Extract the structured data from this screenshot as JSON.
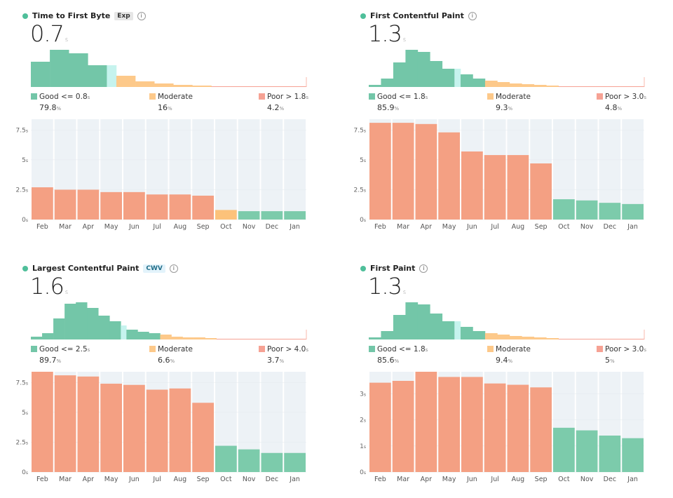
{
  "colors": {
    "good": "#73c6a8",
    "good_current": "#c6f3ee",
    "moderate": "#fdc98a",
    "poor": "#f6a294",
    "bar_good": "#7ccbab",
    "bar_moderate": "#fcc27a",
    "bar_poor": "#f4a083",
    "plot_bg": "#edf2f6",
    "dot": "#4fbf9a"
  },
  "panels": [
    {
      "title": "Time to First Byte",
      "badge": "Exp",
      "badge_type": "exp",
      "info_icon": "i",
      "value": "0.7",
      "unit": "s",
      "legend": {
        "good": {
          "label": "Good <= 0.8",
          "unit": "s",
          "value": "79.8",
          "pct": "%"
        },
        "moderate": {
          "label": "Moderate",
          "value": "16",
          "pct": "%"
        },
        "poor": {
          "label": "Poor > 1.8",
          "unit": "s",
          "value": "4.2",
          "pct": "%"
        }
      },
      "histogram": [
        {
          "h": 36,
          "c": "good"
        },
        {
          "h": 53,
          "c": "good"
        },
        {
          "h": 48,
          "c": "good"
        },
        {
          "h": 31,
          "c": "good"
        },
        {
          "h": 31,
          "c": "current"
        },
        {
          "h": 16,
          "c": "moderate"
        },
        {
          "h": 8,
          "c": "moderate"
        },
        {
          "h": 5,
          "c": "moderate"
        },
        {
          "h": 3,
          "c": "moderate"
        },
        {
          "h": 2,
          "c": "moderate"
        },
        {
          "h": 1,
          "c": "poor"
        },
        {
          "h": 1,
          "c": "poor"
        },
        {
          "h": 1,
          "c": "poor"
        },
        {
          "h": 1,
          "c": "poor"
        },
        {
          "h": 1,
          "c": "poor"
        }
      ],
      "chart_data": {
        "type": "bar",
        "categories": [
          "Feb",
          "Mar",
          "Apr",
          "May",
          "Jun",
          "Jul",
          "Aug",
          "Sep",
          "Oct",
          "Nov",
          "Dec",
          "Jan"
        ],
        "values": [
          2.7,
          2.5,
          2.5,
          2.3,
          2.3,
          2.1,
          2.1,
          2.0,
          0.8,
          0.7,
          0.7,
          0.7
        ],
        "status": [
          "poor",
          "poor",
          "poor",
          "poor",
          "poor",
          "poor",
          "poor",
          "poor",
          "moderate",
          "good",
          "good",
          "good"
        ],
        "yticks": [
          {
            "v": 0,
            "label": "0",
            "unit": "s"
          },
          {
            "v": 2.5,
            "label": "2.5",
            "unit": "s"
          },
          {
            "v": 5,
            "label": "5",
            "unit": "s"
          },
          {
            "v": 7.5,
            "label": "7.5",
            "unit": "s"
          }
        ],
        "ylim": [
          0,
          8.4
        ]
      }
    },
    {
      "title": "First Contentful Paint",
      "badge": "",
      "info_icon": "i",
      "value": "1.3",
      "unit": "s",
      "legend": {
        "good": {
          "label": "Good <= 1.8",
          "unit": "s",
          "value": "85.9",
          "pct": "%"
        },
        "moderate": {
          "label": "Moderate",
          "value": "9.3",
          "pct": "%"
        },
        "poor": {
          "label": "Poor > 3.0",
          "unit": "s",
          "value": "4.8",
          "pct": "%"
        }
      },
      "histogram": [
        {
          "h": 3,
          "c": "good"
        },
        {
          "h": 12,
          "c": "good"
        },
        {
          "h": 35,
          "c": "good"
        },
        {
          "h": 53,
          "c": "good"
        },
        {
          "h": 50,
          "c": "good"
        },
        {
          "h": 37,
          "c": "good"
        },
        {
          "h": 26,
          "c": "good"
        },
        {
          "h": 26,
          "c": "current"
        },
        {
          "h": 18,
          "c": "good"
        },
        {
          "h": 12,
          "c": "good"
        },
        {
          "h": 9,
          "c": "moderate"
        },
        {
          "h": 7,
          "c": "moderate"
        },
        {
          "h": 5,
          "c": "moderate"
        },
        {
          "h": 4,
          "c": "moderate"
        },
        {
          "h": 3,
          "c": "moderate"
        },
        {
          "h": 2,
          "c": "moderate"
        },
        {
          "h": 1,
          "c": "poor"
        },
        {
          "h": 1,
          "c": "poor"
        },
        {
          "h": 1,
          "c": "poor"
        },
        {
          "h": 1,
          "c": "poor"
        },
        {
          "h": 1,
          "c": "poor"
        },
        {
          "h": 1,
          "c": "poor"
        },
        {
          "h": 1,
          "c": "poor"
        }
      ],
      "chart_data": {
        "type": "bar",
        "categories": [
          "Feb",
          "Mar",
          "Apr",
          "May",
          "Jun",
          "Jul",
          "Aug",
          "Sep",
          "Oct",
          "Nov",
          "Dec",
          "Jan"
        ],
        "values": [
          8.1,
          8.1,
          8.0,
          7.3,
          5.7,
          5.4,
          5.4,
          4.7,
          1.7,
          1.6,
          1.4,
          1.3
        ],
        "status": [
          "poor",
          "poor",
          "poor",
          "poor",
          "poor",
          "poor",
          "poor",
          "poor",
          "good",
          "good",
          "good",
          "good"
        ],
        "yticks": [
          {
            "v": 0,
            "label": "0",
            "unit": "s"
          },
          {
            "v": 2.5,
            "label": "2.5",
            "unit": "s"
          },
          {
            "v": 5,
            "label": "5",
            "unit": "s"
          },
          {
            "v": 7.5,
            "label": "7.5",
            "unit": "s"
          }
        ],
        "ylim": [
          0,
          8.4
        ]
      }
    },
    {
      "title": "Largest Contentful Paint",
      "badge": "CWV",
      "badge_type": "cwv",
      "info_icon": "i",
      "value": "1.6",
      "unit": "s",
      "legend": {
        "good": {
          "label": "Good <= 2.5",
          "unit": "s",
          "value": "89.7",
          "pct": "%"
        },
        "moderate": {
          "label": "Moderate",
          "value": "6.6",
          "pct": "%"
        },
        "poor": {
          "label": "Poor > 4.0",
          "unit": "s",
          "value": "3.7",
          "pct": "%"
        }
      },
      "histogram": [
        {
          "h": 4,
          "c": "good"
        },
        {
          "h": 9,
          "c": "good"
        },
        {
          "h": 30,
          "c": "good"
        },
        {
          "h": 51,
          "c": "good"
        },
        {
          "h": 53,
          "c": "good"
        },
        {
          "h": 45,
          "c": "good"
        },
        {
          "h": 34,
          "c": "good"
        },
        {
          "h": 26,
          "c": "good"
        },
        {
          "h": 20,
          "c": "current"
        },
        {
          "h": 14,
          "c": "good"
        },
        {
          "h": 11,
          "c": "good"
        },
        {
          "h": 9,
          "c": "good"
        },
        {
          "h": 7,
          "c": "moderate"
        },
        {
          "h": 4,
          "c": "moderate"
        },
        {
          "h": 3,
          "c": "moderate"
        },
        {
          "h": 3,
          "c": "moderate"
        },
        {
          "h": 2,
          "c": "moderate"
        },
        {
          "h": 1,
          "c": "poor"
        },
        {
          "h": 1,
          "c": "poor"
        },
        {
          "h": 1,
          "c": "poor"
        },
        {
          "h": 1,
          "c": "poor"
        },
        {
          "h": 1,
          "c": "poor"
        },
        {
          "h": 1,
          "c": "poor"
        },
        {
          "h": 1,
          "c": "poor"
        },
        {
          "h": 1,
          "c": "poor"
        }
      ],
      "chart_data": {
        "type": "bar",
        "categories": [
          "Feb",
          "Mar",
          "Apr",
          "May",
          "Jun",
          "Jul",
          "Aug",
          "Sep",
          "Oct",
          "Nov",
          "Dec",
          "Jan"
        ],
        "values": [
          8.4,
          8.1,
          8.0,
          7.4,
          7.3,
          6.9,
          7.0,
          5.8,
          2.2,
          1.9,
          1.6,
          1.6
        ],
        "status": [
          "poor",
          "poor",
          "poor",
          "poor",
          "poor",
          "poor",
          "poor",
          "poor",
          "good",
          "good",
          "good",
          "good"
        ],
        "yticks": [
          {
            "v": 0,
            "label": "0",
            "unit": "s"
          },
          {
            "v": 2.5,
            "label": "2.5",
            "unit": "s"
          },
          {
            "v": 5,
            "label": "5",
            "unit": "s"
          },
          {
            "v": 7.5,
            "label": "7.5",
            "unit": "s"
          }
        ],
        "ylim": [
          0,
          8.4
        ]
      }
    },
    {
      "title": "First Paint",
      "badge": "",
      "info_icon": "i",
      "value": "1.3",
      "unit": "s",
      "legend": {
        "good": {
          "label": "Good <= 1.8",
          "unit": "s",
          "value": "85.6",
          "pct": "%"
        },
        "moderate": {
          "label": "Moderate",
          "value": "9.4",
          "pct": "%"
        },
        "poor": {
          "label": "Poor > 3.0",
          "unit": "s",
          "value": "5",
          "pct": "%"
        }
      },
      "histogram": [
        {
          "h": 3,
          "c": "good"
        },
        {
          "h": 12,
          "c": "good"
        },
        {
          "h": 35,
          "c": "good"
        },
        {
          "h": 53,
          "c": "good"
        },
        {
          "h": 50,
          "c": "good"
        },
        {
          "h": 37,
          "c": "good"
        },
        {
          "h": 26,
          "c": "good"
        },
        {
          "h": 26,
          "c": "current"
        },
        {
          "h": 18,
          "c": "good"
        },
        {
          "h": 12,
          "c": "good"
        },
        {
          "h": 9,
          "c": "moderate"
        },
        {
          "h": 7,
          "c": "moderate"
        },
        {
          "h": 5,
          "c": "moderate"
        },
        {
          "h": 4,
          "c": "moderate"
        },
        {
          "h": 3,
          "c": "moderate"
        },
        {
          "h": 2,
          "c": "moderate"
        },
        {
          "h": 1,
          "c": "poor"
        },
        {
          "h": 1,
          "c": "poor"
        },
        {
          "h": 1,
          "c": "poor"
        },
        {
          "h": 1,
          "c": "poor"
        },
        {
          "h": 1,
          "c": "poor"
        },
        {
          "h": 1,
          "c": "poor"
        },
        {
          "h": 1,
          "c": "poor"
        }
      ],
      "chart_data": {
        "type": "bar",
        "categories": [
          "Feb",
          "Mar",
          "Apr",
          "May",
          "Jun",
          "Jul",
          "Aug",
          "Sep",
          "Oct",
          "Nov",
          "Dec",
          "Jan"
        ],
        "values": [
          3.43,
          3.5,
          3.85,
          3.65,
          3.65,
          3.4,
          3.35,
          3.25,
          1.7,
          1.6,
          1.4,
          1.3
        ],
        "status": [
          "poor",
          "poor",
          "poor",
          "poor",
          "poor",
          "poor",
          "poor",
          "poor",
          "good",
          "good",
          "good",
          "good"
        ],
        "yticks": [
          {
            "v": 0,
            "label": "0",
            "unit": "s"
          },
          {
            "v": 1,
            "label": "1",
            "unit": "s"
          },
          {
            "v": 2,
            "label": "2",
            "unit": "s"
          },
          {
            "v": 3,
            "label": "3",
            "unit": "s"
          }
        ],
        "ylim": [
          0,
          3.85
        ]
      }
    }
  ]
}
